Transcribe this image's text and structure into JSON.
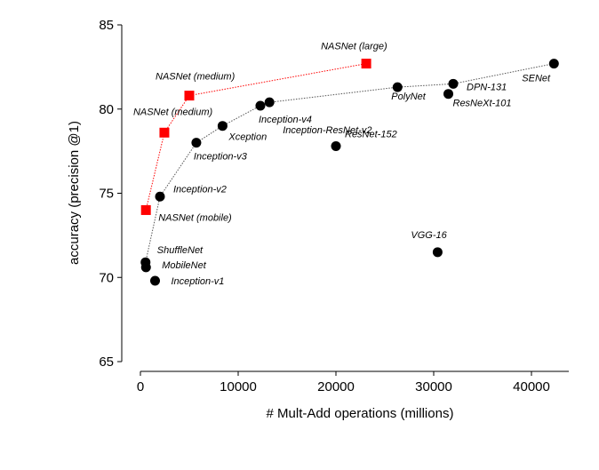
{
  "chart_data": {
    "type": "scatter",
    "x_label": "# Mult-Add operations (millions)",
    "y_label": "accuracy (precision @1)",
    "xlim": [
      -2000,
      44000
    ],
    "ylim": [
      65,
      85
    ],
    "xticks": [
      0,
      10000,
      20000,
      30000,
      40000
    ],
    "yticks": [
      65,
      70,
      75,
      80,
      85
    ],
    "series": [
      {
        "color": "#000000",
        "marker": "circle",
        "labels": [
          "ShuffleNet",
          "MobileNet",
          "Inception-v1",
          "Inception-v2",
          "Inception-v3",
          "Xception",
          "Inception-v4",
          "Inception-ResNet-v2",
          "ResNet-152",
          "PolyNet",
          "VGG-16",
          "ResNeXt-101",
          "DPN-131",
          "SENet"
        ],
        "x": [
          524,
          569,
          1500,
          2000,
          5720,
          8400,
          12270,
          13200,
          20000,
          26300,
          30400,
          31500,
          32000,
          42300
        ],
        "y": [
          70.9,
          70.6,
          69.8,
          74.8,
          78.0,
          79.0,
          80.2,
          80.4,
          77.8,
          81.3,
          71.5,
          80.9,
          81.5,
          82.7
        ],
        "in_line": [
          true,
          false,
          false,
          true,
          true,
          true,
          true,
          true,
          false,
          true,
          false,
          false,
          true,
          true
        ]
      },
      {
        "color": "#ff0000",
        "marker": "square",
        "labels": [
          "NASNet (mobile)",
          "NASNet (medium)",
          "NASNet (medium)",
          "NASNet (large)"
        ],
        "x": [
          564,
          2450,
          5000,
          23100
        ],
        "y": [
          74.0,
          78.6,
          80.8,
          82.7
        ],
        "in_line": [
          true,
          true,
          true,
          true
        ]
      }
    ]
  }
}
